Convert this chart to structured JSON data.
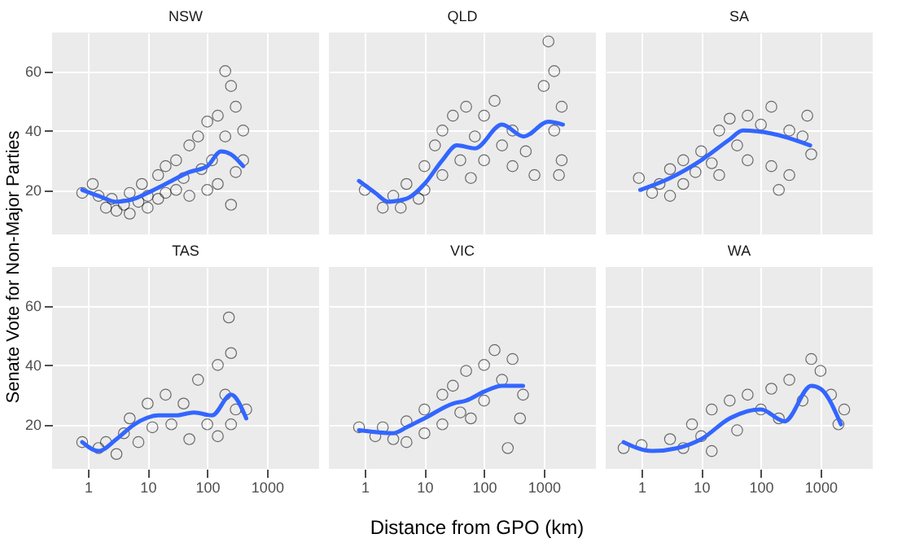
{
  "chart_data": [
    {
      "type": "scatter",
      "title": "NSW",
      "ylabel": "Senate Vote for Non-Major Parties",
      "log": "x",
      "xlim": [
        0.25,
        7500
      ],
      "ylim": [
        5,
        73
      ],
      "xticks": [
        1,
        10,
        100,
        1000
      ],
      "yticks": [
        20,
        40,
        60
      ],
      "grid": true,
      "tick_labels": "y",
      "series": [
        {
          "type": "scatter",
          "marker": "circle",
          "color": "#000000",
          "x": [
            0.8,
            1.2,
            1.5,
            2,
            2.5,
            3,
            4,
            5,
            5,
            7,
            8,
            10,
            10,
            15,
            15,
            20,
            20,
            30,
            30,
            40,
            50,
            50,
            70,
            80,
            100,
            100,
            120,
            150,
            150,
            200,
            200,
            250,
            250,
            300,
            300,
            400,
            400
          ],
          "values": [
            19,
            22,
            18,
            14,
            17,
            13,
            15,
            19,
            12,
            16,
            22,
            18,
            14,
            25,
            17,
            28,
            19,
            30,
            20,
            24,
            35,
            18,
            38,
            27,
            43,
            20,
            30,
            45,
            22,
            60,
            38,
            55,
            15,
            48,
            26,
            40,
            30
          ]
        },
        {
          "type": "line",
          "marker": "none",
          "color": "#3366ff",
          "x": [
            0.8,
            1.5,
            3,
            6,
            10,
            20,
            50,
            100,
            170,
            250,
            400
          ],
          "values": [
            20,
            18,
            16,
            17,
            19,
            22,
            26,
            28,
            33,
            32,
            28
          ]
        }
      ]
    },
    {
      "type": "scatter",
      "title": "QLD",
      "log": "x",
      "xlim": [
        0.25,
        7500
      ],
      "ylim": [
        5,
        73
      ],
      "xticks": [
        1,
        10,
        100,
        1000
      ],
      "yticks": [
        20,
        40,
        60
      ],
      "grid": true,
      "tick_labels": false,
      "series": [
        {
          "type": "scatter",
          "marker": "circle",
          "color": "#000000",
          "x": [
            1,
            2,
            3,
            4,
            5,
            8,
            10,
            10,
            15,
            20,
            20,
            30,
            40,
            50,
            60,
            70,
            100,
            100,
            150,
            200,
            300,
            300,
            500,
            700,
            1000,
            1200,
            1500,
            1500,
            2000,
            2000,
            1800
          ],
          "values": [
            20,
            14,
            18,
            14,
            22,
            17,
            28,
            20,
            35,
            25,
            40,
            45,
            30,
            48,
            24,
            38,
            30,
            45,
            50,
            35,
            40,
            28,
            33,
            25,
            55,
            70,
            40,
            60,
            30,
            48,
            25
          ]
        },
        {
          "type": "line",
          "marker": "none",
          "color": "#3366ff",
          "x": [
            0.8,
            1.5,
            2.5,
            5,
            10,
            20,
            35,
            70,
            200,
            460,
            1200,
            2100
          ],
          "values": [
            23,
            19,
            16,
            17,
            22,
            30,
            35,
            34,
            42,
            38,
            43,
            42
          ]
        }
      ]
    },
    {
      "type": "scatter",
      "title": "SA",
      "log": "x",
      "xlim": [
        0.25,
        7500
      ],
      "ylim": [
        5,
        73
      ],
      "xticks": [
        1,
        10,
        100,
        1000
      ],
      "yticks": [
        20,
        40,
        60
      ],
      "grid": true,
      "tick_labels": false,
      "series": [
        {
          "type": "scatter",
          "marker": "circle",
          "color": "#000000",
          "x": [
            0.9,
            1.5,
            2,
            3,
            3,
            5,
            5,
            8,
            10,
            15,
            20,
            20,
            30,
            40,
            60,
            60,
            100,
            150,
            150,
            200,
            300,
            300,
            500,
            700,
            600
          ],
          "values": [
            24,
            19,
            22,
            18,
            27,
            22,
            30,
            26,
            33,
            29,
            40,
            25,
            44,
            35,
            45,
            30,
            42,
            48,
            28,
            20,
            40,
            25,
            38,
            32,
            45
          ]
        },
        {
          "type": "line",
          "marker": "none",
          "color": "#3366ff",
          "x": [
            0.95,
            3,
            10,
            30,
            50,
            150,
            670
          ],
          "values": [
            20,
            24,
            30,
            37,
            40,
            39,
            35
          ]
        }
      ]
    },
    {
      "type": "scatter",
      "title": "TAS",
      "log": "x",
      "xlim": [
        0.25,
        7500
      ],
      "ylim": [
        5,
        73
      ],
      "xticks": [
        1,
        10,
        100,
        1000
      ],
      "yticks": [
        20,
        40,
        60
      ],
      "grid": true,
      "series": [
        {
          "type": "scatter",
          "marker": "circle",
          "color": "#000000",
          "x": [
            0.8,
            1.5,
            2,
            3,
            4,
            5,
            7,
            10,
            12,
            20,
            25,
            40,
            50,
            70,
            100,
            150,
            150,
            200,
            230,
            250,
            250,
            300,
            450
          ],
          "values": [
            14,
            12,
            14,
            10,
            17,
            22,
            14,
            27,
            19,
            30,
            20,
            27,
            15,
            35,
            20,
            40,
            16,
            30,
            56,
            44,
            20,
            25,
            25
          ]
        },
        {
          "type": "line",
          "marker": "none",
          "color": "#3366ff",
          "x": [
            0.8,
            1.5,
            3,
            6,
            15,
            30,
            60,
            120,
            250,
            450
          ],
          "values": [
            14,
            11,
            15,
            20,
            23,
            23,
            24,
            23,
            30,
            22
          ]
        }
      ]
    },
    {
      "type": "scatter",
      "title": "VIC",
      "xlabel": "Distance from GPO (km)",
      "log": "x",
      "xlim": [
        0.25,
        7500
      ],
      "ylim": [
        5,
        73
      ],
      "xticks": [
        1,
        10,
        100,
        1000
      ],
      "yticks": [
        20,
        40,
        60
      ],
      "grid": true,
      "tick_labels": "x",
      "series": [
        {
          "type": "scatter",
          "marker": "circle",
          "color": "#000000",
          "x": [
            0.8,
            1.5,
            2,
            3,
            5,
            5,
            10,
            10,
            20,
            20,
            30,
            40,
            50,
            60,
            100,
            100,
            150,
            200,
            250,
            300,
            450,
            400
          ],
          "values": [
            19,
            16,
            19,
            15,
            21,
            14,
            25,
            17,
            30,
            20,
            33,
            24,
            38,
            22,
            40,
            28,
            45,
            35,
            12,
            42,
            30,
            22
          ]
        },
        {
          "type": "line",
          "marker": "none",
          "color": "#3366ff",
          "x": [
            0.8,
            3,
            5,
            10,
            30,
            50,
            100,
            200,
            450
          ],
          "values": [
            18,
            17,
            19,
            22,
            27,
            28,
            31,
            33,
            33
          ]
        }
      ]
    },
    {
      "type": "scatter",
      "title": "WA",
      "log": "x",
      "xlim": [
        0.25,
        7500
      ],
      "ylim": [
        5,
        73
      ],
      "xticks": [
        1,
        10,
        100,
        1000
      ],
      "yticks": [
        20,
        40,
        60
      ],
      "grid": true,
      "tick_labels": "x",
      "series": [
        {
          "type": "scatter",
          "marker": "circle",
          "color": "#000000",
          "x": [
            0.5,
            1,
            3,
            5,
            7,
            10,
            15,
            15,
            30,
            40,
            60,
            100,
            150,
            200,
            300,
            500,
            700,
            1000,
            1500,
            2000,
            2500
          ],
          "values": [
            12,
            13,
            15,
            12,
            20,
            16,
            25,
            11,
            28,
            18,
            30,
            25,
            32,
            22,
            35,
            28,
            42,
            38,
            30,
            20,
            25
          ]
        },
        {
          "type": "line",
          "marker": "none",
          "color": "#3366ff",
          "x": [
            0.5,
            1.5,
            4,
            10,
            30,
            100,
            250,
            700,
            1000,
            2200
          ],
          "values": [
            14,
            11,
            12,
            15,
            22,
            25,
            21,
            33,
            32,
            20
          ]
        }
      ]
    }
  ]
}
